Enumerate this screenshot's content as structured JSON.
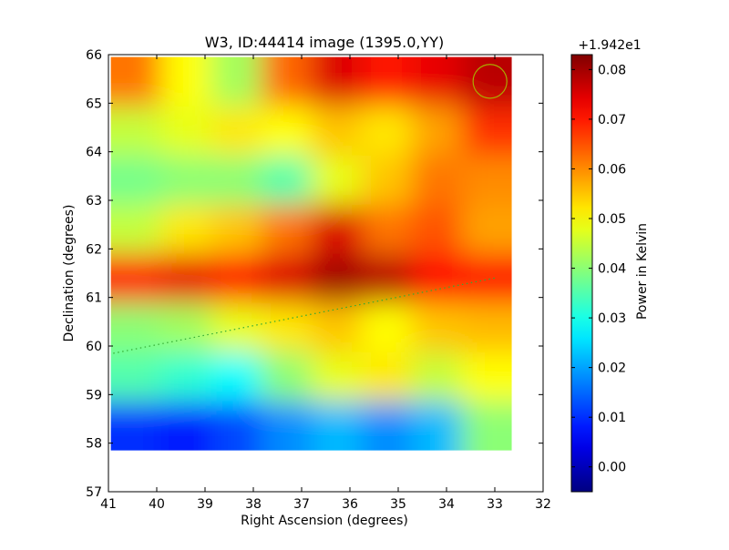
{
  "chart_data": {
    "type": "heatmap",
    "title": "W3, ID:44414 image (1395.0,YY)",
    "xlabel": "Right Ascension (degrees)",
    "ylabel": "Declination (degrees)",
    "xlim": [
      41,
      32
    ],
    "ylim": [
      57,
      66
    ],
    "x_ticks": [
      41,
      40,
      39,
      38,
      37,
      36,
      35,
      34,
      33,
      32
    ],
    "y_ticks": [
      57,
      58,
      59,
      60,
      61,
      62,
      63,
      64,
      65,
      66
    ],
    "image_extent": {
      "x": [
        40.95,
        32.65
      ],
      "y": [
        57.85,
        65.95
      ]
    },
    "colormap": "jet",
    "grid": false,
    "colorbar": {
      "label": "Power in Kelvin",
      "offset_text": "+1.942e1",
      "min": -0.005,
      "max": 0.083,
      "ticks": [
        "0.00",
        "0.01",
        "0.02",
        "0.03",
        "0.04",
        "0.05",
        "0.06",
        "0.07",
        "0.08"
      ],
      "tick_values": [
        0.0,
        0.01,
        0.02,
        0.03,
        0.04,
        0.05,
        0.06,
        0.07,
        0.08
      ]
    },
    "grid_ra": [
      40.5,
      39.5,
      38.5,
      37.5,
      36.5,
      35.5,
      34.5,
      33.5
    ],
    "grid_dec": [
      65.5,
      64.5,
      63.5,
      62.5,
      61.5,
      60.5,
      59.5,
      58.5
    ],
    "values": [
      [
        0.062,
        0.05,
        0.042,
        0.063,
        0.075,
        0.07,
        0.074,
        0.078
      ],
      [
        0.045,
        0.048,
        0.052,
        0.05,
        0.055,
        0.052,
        0.058,
        0.068
      ],
      [
        0.038,
        0.04,
        0.04,
        0.035,
        0.048,
        0.055,
        0.062,
        0.06
      ],
      [
        0.045,
        0.052,
        0.055,
        0.062,
        0.075,
        0.062,
        0.065,
        0.058
      ],
      [
        0.07,
        0.074,
        0.07,
        0.075,
        0.08,
        0.078,
        0.072,
        0.07
      ],
      [
        0.04,
        0.042,
        0.048,
        0.052,
        0.055,
        0.05,
        0.055,
        0.056
      ],
      [
        0.035,
        0.032,
        0.028,
        0.04,
        0.048,
        0.052,
        0.045,
        0.05
      ],
      [
        0.01,
        0.008,
        0.012,
        0.018,
        0.022,
        0.018,
        0.022,
        0.04
      ]
    ],
    "annotations": [
      {
        "type": "dotted-line",
        "color": "#33aa33",
        "points": [
          [
            40.9,
            59.85
          ],
          [
            33.0,
            61.4
          ]
        ]
      },
      {
        "type": "circle",
        "color": "#aaaa00",
        "center": [
          33.1,
          65.45
        ],
        "radius_deg": 0.35
      }
    ]
  }
}
